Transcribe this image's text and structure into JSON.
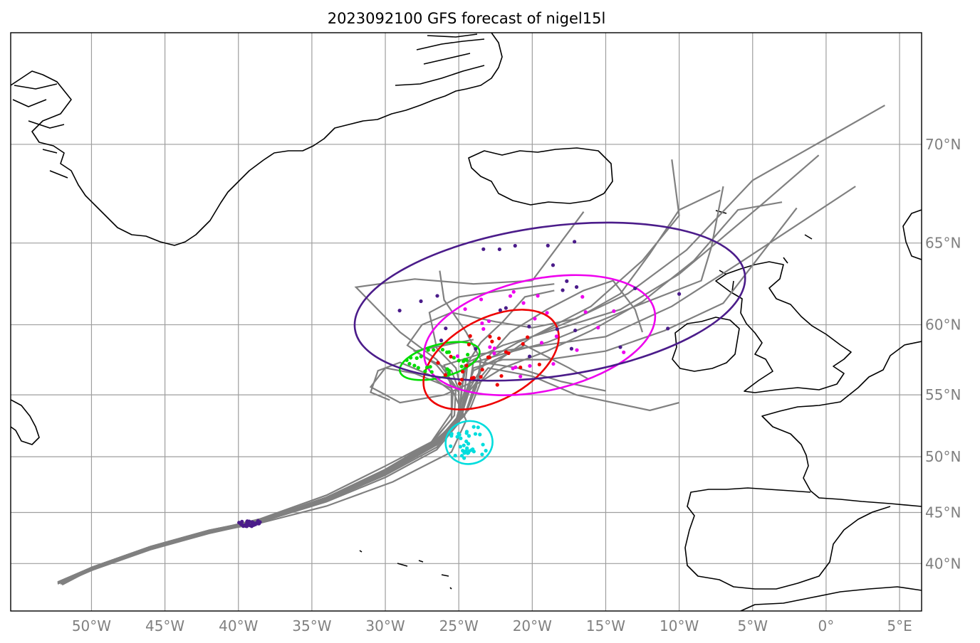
{
  "title": "2023092100 GFS forecast of nigel15l",
  "map": {
    "lon_range": [
      -55.5,
      6.5
    ],
    "lat_range": [
      35,
      74.5
    ],
    "lon_ticks": [
      {
        "lon": -50,
        "label": "50°W"
      },
      {
        "lon": -45,
        "label": "45°W"
      },
      {
        "lon": -40,
        "label": "40°W"
      },
      {
        "lon": -35,
        "label": "35°W"
      },
      {
        "lon": -30,
        "label": "30°W"
      },
      {
        "lon": -25,
        "label": "25°W"
      },
      {
        "lon": -20,
        "label": "20°W"
      },
      {
        "lon": -15,
        "label": "15°W"
      },
      {
        "lon": -10,
        "label": "10°W"
      },
      {
        "lon": -5,
        "label": "5°W"
      },
      {
        "lon": 0,
        "label": "0°"
      },
      {
        "lon": 5,
        "label": "5°E"
      }
    ],
    "lat_ticks": [
      {
        "lat": 40,
        "label": "40°N"
      },
      {
        "lat": 45,
        "label": "45°N"
      },
      {
        "lat": 50,
        "label": "50°N"
      },
      {
        "lat": 55,
        "label": "55°N"
      },
      {
        "lat": 60,
        "label": "60°N"
      },
      {
        "lat": 65,
        "label": "65°N"
      },
      {
        "lat": 70,
        "label": "70°N"
      }
    ],
    "gridlines": true,
    "track_color": "#808080"
  },
  "probability_ellipses": [
    {
      "color": "#00dddd",
      "center": [
        -24.3,
        51.2
      ],
      "rx_deg": 1.6,
      "ry_deg": 1.75,
      "rotation": -10
    },
    {
      "color": "#00dd00",
      "center": [
        -26.3,
        57.5
      ],
      "rx_deg": 2.8,
      "ry_deg": 1.15,
      "rotation": -15
    },
    {
      "color": "#ee0000",
      "center": [
        -22.8,
        57.6
      ],
      "rx_deg": 5.0,
      "ry_deg": 2.8,
      "rotation": -28
    },
    {
      "color": "#ee00ee",
      "center": [
        -19.5,
        59.3
      ],
      "rx_deg": 8.0,
      "ry_deg": 3.6,
      "rotation": -12
    },
    {
      "color": "#4b1c8a",
      "center": [
        -18.8,
        61.5
      ],
      "rx_deg": 13.4,
      "ry_deg": 4.4,
      "rotation": -8
    }
  ],
  "ensemble_tracks": [
    [
      [
        -52.2,
        38.0
      ],
      [
        -50,
        39.5
      ],
      [
        -46,
        41.6
      ],
      [
        -42,
        43.2
      ],
      [
        -38.5,
        44.3
      ],
      [
        -34,
        46.4
      ],
      [
        -30,
        48.8
      ],
      [
        -26.5,
        51.2
      ],
      [
        -24.6,
        53.4
      ],
      [
        -24.0,
        55.5
      ],
      [
        -23.2,
        57.5
      ],
      [
        -21,
        58.8
      ],
      [
        -17.5,
        60.2
      ],
      [
        -13.5,
        62.0
      ],
      [
        -9.5,
        64.6
      ],
      [
        -5,
        68.3
      ],
      [
        4,
        71.7
      ]
    ],
    [
      [
        -52.3,
        37.9
      ],
      [
        -50,
        39.4
      ],
      [
        -46,
        41.5
      ],
      [
        -42,
        43.1
      ],
      [
        -38.5,
        44.2
      ],
      [
        -34.5,
        46.0
      ],
      [
        -30.5,
        48.4
      ],
      [
        -27,
        50.8
      ],
      [
        -25.2,
        53.0
      ],
      [
        -24.6,
        55.3
      ],
      [
        -24.4,
        57.4
      ],
      [
        -22,
        58.6
      ],
      [
        -18,
        59.8
      ],
      [
        -14,
        61.0
      ],
      [
        -10,
        63.2
      ],
      [
        -4.5,
        67.0
      ],
      [
        -0.5,
        69.5
      ]
    ],
    [
      [
        -52.1,
        37.9
      ],
      [
        -50,
        39.3
      ],
      [
        -46,
        41.4
      ],
      [
        -42,
        43.0
      ],
      [
        -38.5,
        44.1
      ],
      [
        -34,
        46.2
      ],
      [
        -30,
        48.6
      ],
      [
        -27,
        51.0
      ],
      [
        -25.5,
        53.6
      ],
      [
        -25.5,
        55.6
      ],
      [
        -26,
        57.2
      ],
      [
        -23.5,
        58.0
      ],
      [
        -20,
        58.5
      ],
      [
        -15,
        59.2
      ],
      [
        -10.5,
        61.2
      ],
      [
        -6,
        63.8
      ],
      [
        2,
        68.0
      ]
    ],
    [
      [
        -52.2,
        38.0
      ],
      [
        -49.5,
        39.6
      ],
      [
        -45.5,
        41.8
      ],
      [
        -41.5,
        43.4
      ],
      [
        -38.5,
        44.4
      ],
      [
        -34,
        46.6
      ],
      [
        -30,
        49.2
      ],
      [
        -26,
        51.8
      ],
      [
        -24.2,
        54.0
      ],
      [
        -23.5,
        56.0
      ],
      [
        -22.5,
        57.4
      ],
      [
        -20,
        59.2
      ],
      [
        -16,
        61.2
      ],
      [
        -12.5,
        64.0
      ],
      [
        -10,
        66.5
      ],
      [
        -10.5,
        69.3
      ]
    ],
    [
      [
        -52.0,
        37.8
      ],
      [
        -50,
        39.4
      ],
      [
        -46,
        41.5
      ],
      [
        -42,
        43.1
      ],
      [
        -38.5,
        44.0
      ],
      [
        -34,
        45.6
      ],
      [
        -29.5,
        47.8
      ],
      [
        -25.5,
        50.4
      ],
      [
        -24.5,
        53.0
      ],
      [
        -25.5,
        55.5
      ],
      [
        -28,
        56.6
      ],
      [
        -30,
        57.0
      ],
      [
        -31,
        55.6
      ],
      [
        -29,
        54.4
      ],
      [
        -26,
        55.0
      ],
      [
        -24,
        56.0
      ]
    ],
    [
      [
        -52.3,
        38.1
      ],
      [
        -50,
        39.6
      ],
      [
        -46,
        41.7
      ],
      [
        -42,
        43.3
      ],
      [
        -38.5,
        44.3
      ],
      [
        -34,
        46.3
      ],
      [
        -30,
        48.7
      ],
      [
        -26.5,
        51.3
      ],
      [
        -25,
        53.3
      ],
      [
        -25,
        55.2
      ],
      [
        -26.5,
        57.2
      ],
      [
        -28.5,
        58.6
      ],
      [
        -27.5,
        60.0
      ],
      [
        -25.5,
        60.8
      ],
      [
        -22.5,
        60.2
      ],
      [
        -20,
        59.8
      ],
      [
        -17,
        60.4
      ],
      [
        -14,
        62.0
      ],
      [
        -12,
        64.4
      ],
      [
        -10,
        66.8
      ],
      [
        -7.2,
        67.8
      ]
    ],
    [
      [
        -52.2,
        38.0
      ],
      [
        -50,
        39.5
      ],
      [
        -46,
        41.6
      ],
      [
        -42,
        43.2
      ],
      [
        -38.5,
        44.2
      ],
      [
        -34,
        46.3
      ],
      [
        -30,
        48.6
      ],
      [
        -26.8,
        51.2
      ],
      [
        -25.3,
        53.4
      ],
      [
        -25.2,
        55.6
      ],
      [
        -26.5,
        57.6
      ],
      [
        -29,
        59.5
      ],
      [
        -32,
        62.4
      ],
      [
        -28,
        62.9
      ],
      [
        -24,
        62.6
      ],
      [
        -20,
        62.8
      ],
      [
        -16.5,
        66.7
      ]
    ],
    [
      [
        -52.1,
        37.9
      ],
      [
        -50,
        39.4
      ],
      [
        -46,
        41.5
      ],
      [
        -42,
        43.1
      ],
      [
        -38.5,
        44.1
      ],
      [
        -34,
        46.1
      ],
      [
        -30,
        48.4
      ],
      [
        -26.5,
        50.8
      ],
      [
        -25,
        53.0
      ],
      [
        -24.8,
        55.2
      ],
      [
        -25.2,
        57.0
      ],
      [
        -26.5,
        58.4
      ],
      [
        -27,
        60.8
      ],
      [
        -25,
        61.8
      ],
      [
        -22,
        62.2
      ],
      [
        -18.5,
        62.6
      ]
    ],
    [
      [
        -52.3,
        38.0
      ],
      [
        -50,
        39.6
      ],
      [
        -46,
        41.7
      ],
      [
        -42,
        43.3
      ],
      [
        -38.5,
        44.3
      ],
      [
        -34,
        46.4
      ],
      [
        -30,
        48.9
      ],
      [
        -26.5,
        51.5
      ],
      [
        -24.5,
        53.6
      ],
      [
        -23.8,
        55.6
      ],
      [
        -23.5,
        57.6
      ],
      [
        -24.5,
        59.5
      ],
      [
        -26,
        61.6
      ],
      [
        -26.3,
        63.4
      ]
    ],
    [
      [
        -52.2,
        38.0
      ],
      [
        -50,
        39.5
      ],
      [
        -46,
        41.6
      ],
      [
        -42,
        43.2
      ],
      [
        -38.5,
        44.2
      ],
      [
        -34,
        46.2
      ],
      [
        -30,
        48.5
      ],
      [
        -27,
        51.0
      ],
      [
        -25.5,
        53.1
      ],
      [
        -25.4,
        55.2
      ],
      [
        -27,
        56.5
      ],
      [
        -29,
        57.4
      ],
      [
        -30.5,
        56.8
      ],
      [
        -31,
        55.2
      ],
      [
        -29.7,
        54.6
      ]
    ],
    [
      [
        -52.2,
        38.0
      ],
      [
        -50,
        39.5
      ],
      [
        -46,
        41.6
      ],
      [
        -42,
        43.2
      ],
      [
        -38.5,
        44.2
      ],
      [
        -34,
        46.3
      ],
      [
        -30,
        48.7
      ],
      [
        -26.5,
        51.2
      ],
      [
        -24.8,
        53.4
      ],
      [
        -24.3,
        55.4
      ],
      [
        -24,
        57.5
      ],
      [
        -21,
        57.0
      ],
      [
        -18,
        56.0
      ],
      [
        -15,
        55.3
      ]
    ],
    [
      [
        -52.0,
        37.9
      ],
      [
        -50,
        39.4
      ],
      [
        -46,
        41.5
      ],
      [
        -42,
        43.1
      ],
      [
        -38.5,
        44.1
      ],
      [
        -34,
        46.0
      ],
      [
        -30,
        48.2
      ],
      [
        -26.5,
        50.6
      ],
      [
        -25,
        52.8
      ],
      [
        -24.5,
        55.0
      ],
      [
        -23,
        57.0
      ],
      [
        -20,
        56.4
      ],
      [
        -17,
        55.0
      ],
      [
        -12,
        53.8
      ],
      [
        -10,
        54.4
      ]
    ],
    [
      [
        -52.2,
        38.0
      ],
      [
        -50,
        39.5
      ],
      [
        -46,
        41.6
      ],
      [
        -42,
        43.2
      ],
      [
        -38.5,
        44.2
      ],
      [
        -34,
        46.2
      ],
      [
        -30,
        48.5
      ],
      [
        -26.5,
        51.1
      ],
      [
        -25,
        53.2
      ],
      [
        -24.8,
        55.5
      ],
      [
        -24.6,
        57.2
      ],
      [
        -22,
        58.0
      ],
      [
        -19,
        58.8
      ],
      [
        -16,
        60.0
      ],
      [
        -13,
        61.2
      ],
      [
        -8.5,
        62.8
      ],
      [
        -7.8,
        64.8
      ],
      [
        -7,
        68
      ]
    ],
    [
      [
        -52.2,
        38.0
      ],
      [
        -50,
        39.5
      ],
      [
        -46,
        41.6
      ],
      [
        -42,
        43.2
      ],
      [
        -38.5,
        44.2
      ],
      [
        -34,
        46.2
      ],
      [
        -30,
        48.6
      ],
      [
        -26.5,
        51.2
      ],
      [
        -24.8,
        53.5
      ],
      [
        -24.2,
        55.6
      ],
      [
        -23,
        57.8
      ],
      [
        -21.5,
        59.5
      ],
      [
        -19,
        61.0
      ],
      [
        -16.5,
        62.2
      ],
      [
        -14.5,
        62.8
      ],
      [
        -13,
        61.0
      ],
      [
        -12.5,
        59.5
      ]
    ],
    [
      [
        -52.1,
        37.9
      ],
      [
        -50,
        39.4
      ],
      [
        -46,
        41.5
      ],
      [
        -42,
        43.1
      ],
      [
        -38.5,
        44.1
      ],
      [
        -34,
        46.1
      ],
      [
        -30,
        48.5
      ],
      [
        -26.5,
        51.0
      ],
      [
        -24.8,
        53.2
      ],
      [
        -24.4,
        55.4
      ],
      [
        -24,
        57.0
      ],
      [
        -22,
        57.6
      ],
      [
        -19,
        57.6
      ],
      [
        -15,
        58.2
      ],
      [
        -11,
        59.6
      ],
      [
        -7,
        61.4
      ],
      [
        -2,
        66.9
      ]
    ],
    [
      [
        -52.3,
        38.0
      ],
      [
        -50,
        39.6
      ],
      [
        -46,
        41.7
      ],
      [
        -42,
        43.3
      ],
      [
        -38.5,
        44.3
      ],
      [
        -34,
        46.4
      ],
      [
        -30,
        48.8
      ],
      [
        -26.5,
        51.4
      ],
      [
        -24.5,
        53.6
      ],
      [
        -23.8,
        55.8
      ],
      [
        -22,
        57.0
      ],
      [
        -19,
        58.2
      ],
      [
        -16,
        59.6
      ],
      [
        -12.5,
        61.5
      ],
      [
        -9,
        64
      ],
      [
        -6,
        66.8
      ],
      [
        -3,
        67.2
      ]
    ],
    [
      [
        -52.2,
        38.0
      ],
      [
        -50,
        39.5
      ],
      [
        -46,
        41.6
      ],
      [
        -42,
        43.2
      ],
      [
        -38.5,
        44.2
      ],
      [
        -34,
        46.3
      ],
      [
        -30,
        48.7
      ],
      [
        -26.5,
        51.3
      ],
      [
        -25,
        53.4
      ],
      [
        -25,
        55.4
      ],
      [
        -25.5,
        56.8
      ],
      [
        -27,
        57.6
      ],
      [
        -28,
        58.2
      ],
      [
        -26,
        58.6
      ],
      [
        -24,
        59.0
      ]
    ],
    [
      [
        -52.2,
        38.0
      ],
      [
        -50,
        39.5
      ],
      [
        -46,
        41.6
      ],
      [
        -42,
        43.2
      ],
      [
        -38.5,
        44.2
      ],
      [
        -34,
        46.3
      ],
      [
        -30,
        48.6
      ],
      [
        -26.5,
        51.2
      ],
      [
        -25,
        53.3
      ],
      [
        -24.8,
        55.4
      ],
      [
        -24.5,
        57.2
      ],
      [
        -23.5,
        58.8
      ],
      [
        -22,
        60.2
      ],
      [
        -20.5,
        61.8
      ],
      [
        -18.5,
        62.2
      ]
    ],
    [
      [
        -52.2,
        38.0
      ],
      [
        -50,
        39.5
      ],
      [
        -46,
        41.6
      ],
      [
        -42,
        43.2
      ],
      [
        -38.5,
        44.2
      ],
      [
        -34,
        46.3
      ],
      [
        -30,
        48.6
      ],
      [
        -26.5,
        51.2
      ],
      [
        -25,
        53.3
      ],
      [
        -24.5,
        55.3
      ],
      [
        -24,
        56.8
      ],
      [
        -22.5,
        57.6
      ],
      [
        -20.5,
        58.6
      ],
      [
        -17.5,
        57.0
      ],
      [
        -16.2,
        56.2
      ]
    ]
  ],
  "position_markers": [
    {
      "color": "#00dddd",
      "spread": [
        -24.3,
        51.2,
        1.4,
        1.5
      ],
      "count": 34
    },
    {
      "color": "#00dd00",
      "spread": [
        -26.3,
        57.5,
        2.3,
        0.9
      ],
      "count": 26
    },
    {
      "color": "#ee0000",
      "spread": [
        -22.8,
        57.6,
        4.0,
        2.2
      ],
      "count": 26
    },
    {
      "color": "#ee00ee",
      "spread": [
        -19.5,
        59.3,
        6.5,
        3.0
      ],
      "count": 28
    },
    {
      "color": "#4b1c8a",
      "spread": [
        -18.8,
        61.5,
        11.0,
        3.8
      ],
      "count": 26
    },
    {
      "color": "#4b1c8a",
      "spread": [
        -39.3,
        44.0,
        0.8,
        0.35
      ],
      "count": 30
    }
  ]
}
